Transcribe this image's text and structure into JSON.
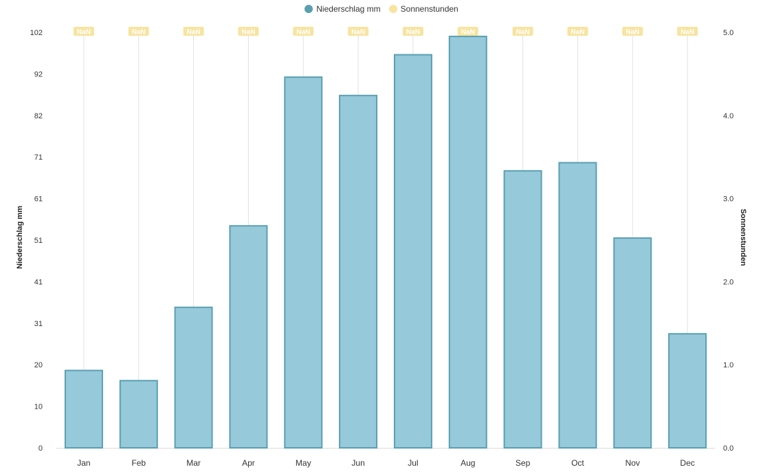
{
  "legend": {
    "items": [
      {
        "label": "Niederschlag mm",
        "color": "#5a9fb0"
      },
      {
        "label": "Sonnenstunden",
        "color": "#f7e4a0"
      }
    ]
  },
  "chart_data": {
    "type": "bar",
    "categories": [
      "Jan",
      "Feb",
      "Mar",
      "Apr",
      "May",
      "Jun",
      "Jul",
      "Aug",
      "Sep",
      "Oct",
      "Nov",
      "Dec"
    ],
    "series": [
      {
        "name": "Niederschlag mm",
        "type": "bar",
        "axis": "left",
        "values": [
          19,
          16.5,
          34.5,
          54.5,
          91,
          86.5,
          96.5,
          101,
          68,
          70,
          51.5,
          28
        ],
        "color": "#96c9da",
        "border_color": "#5a9fb0"
      },
      {
        "name": "Sonnenstunden",
        "type": "line",
        "axis": "right",
        "values": [
          null,
          null,
          null,
          null,
          null,
          null,
          null,
          null,
          null,
          null,
          null,
          null
        ],
        "data_labels": [
          "NaN",
          "NaN",
          "NaN",
          "NaN",
          "NaN",
          "NaN",
          "NaN",
          "NaN",
          "NaN",
          "NaN",
          "NaN",
          "NaN"
        ],
        "color": "#f7e4a0"
      }
    ],
    "left_axis": {
      "label": "Niederschlag mm",
      "ylim": [
        0,
        102
      ],
      "ticks": [
        "0",
        "10",
        "20",
        "31",
        "41",
        "51",
        "61",
        "71",
        "82",
        "92",
        "102"
      ],
      "tick_values": [
        0,
        10.2,
        20.4,
        30.6,
        40.8,
        51,
        61.2,
        71.4,
        81.6,
        91.8,
        102
      ]
    },
    "right_axis": {
      "label": "Sonnenstunden",
      "ylim": [
        0,
        5
      ],
      "ticks": [
        "0.0",
        "1.0",
        "2.0",
        "3.0",
        "4.0",
        "5.0"
      ],
      "tick_values": [
        0,
        1,
        2,
        3,
        4,
        5
      ]
    },
    "grid": "vertical",
    "legend_position": "top"
  }
}
